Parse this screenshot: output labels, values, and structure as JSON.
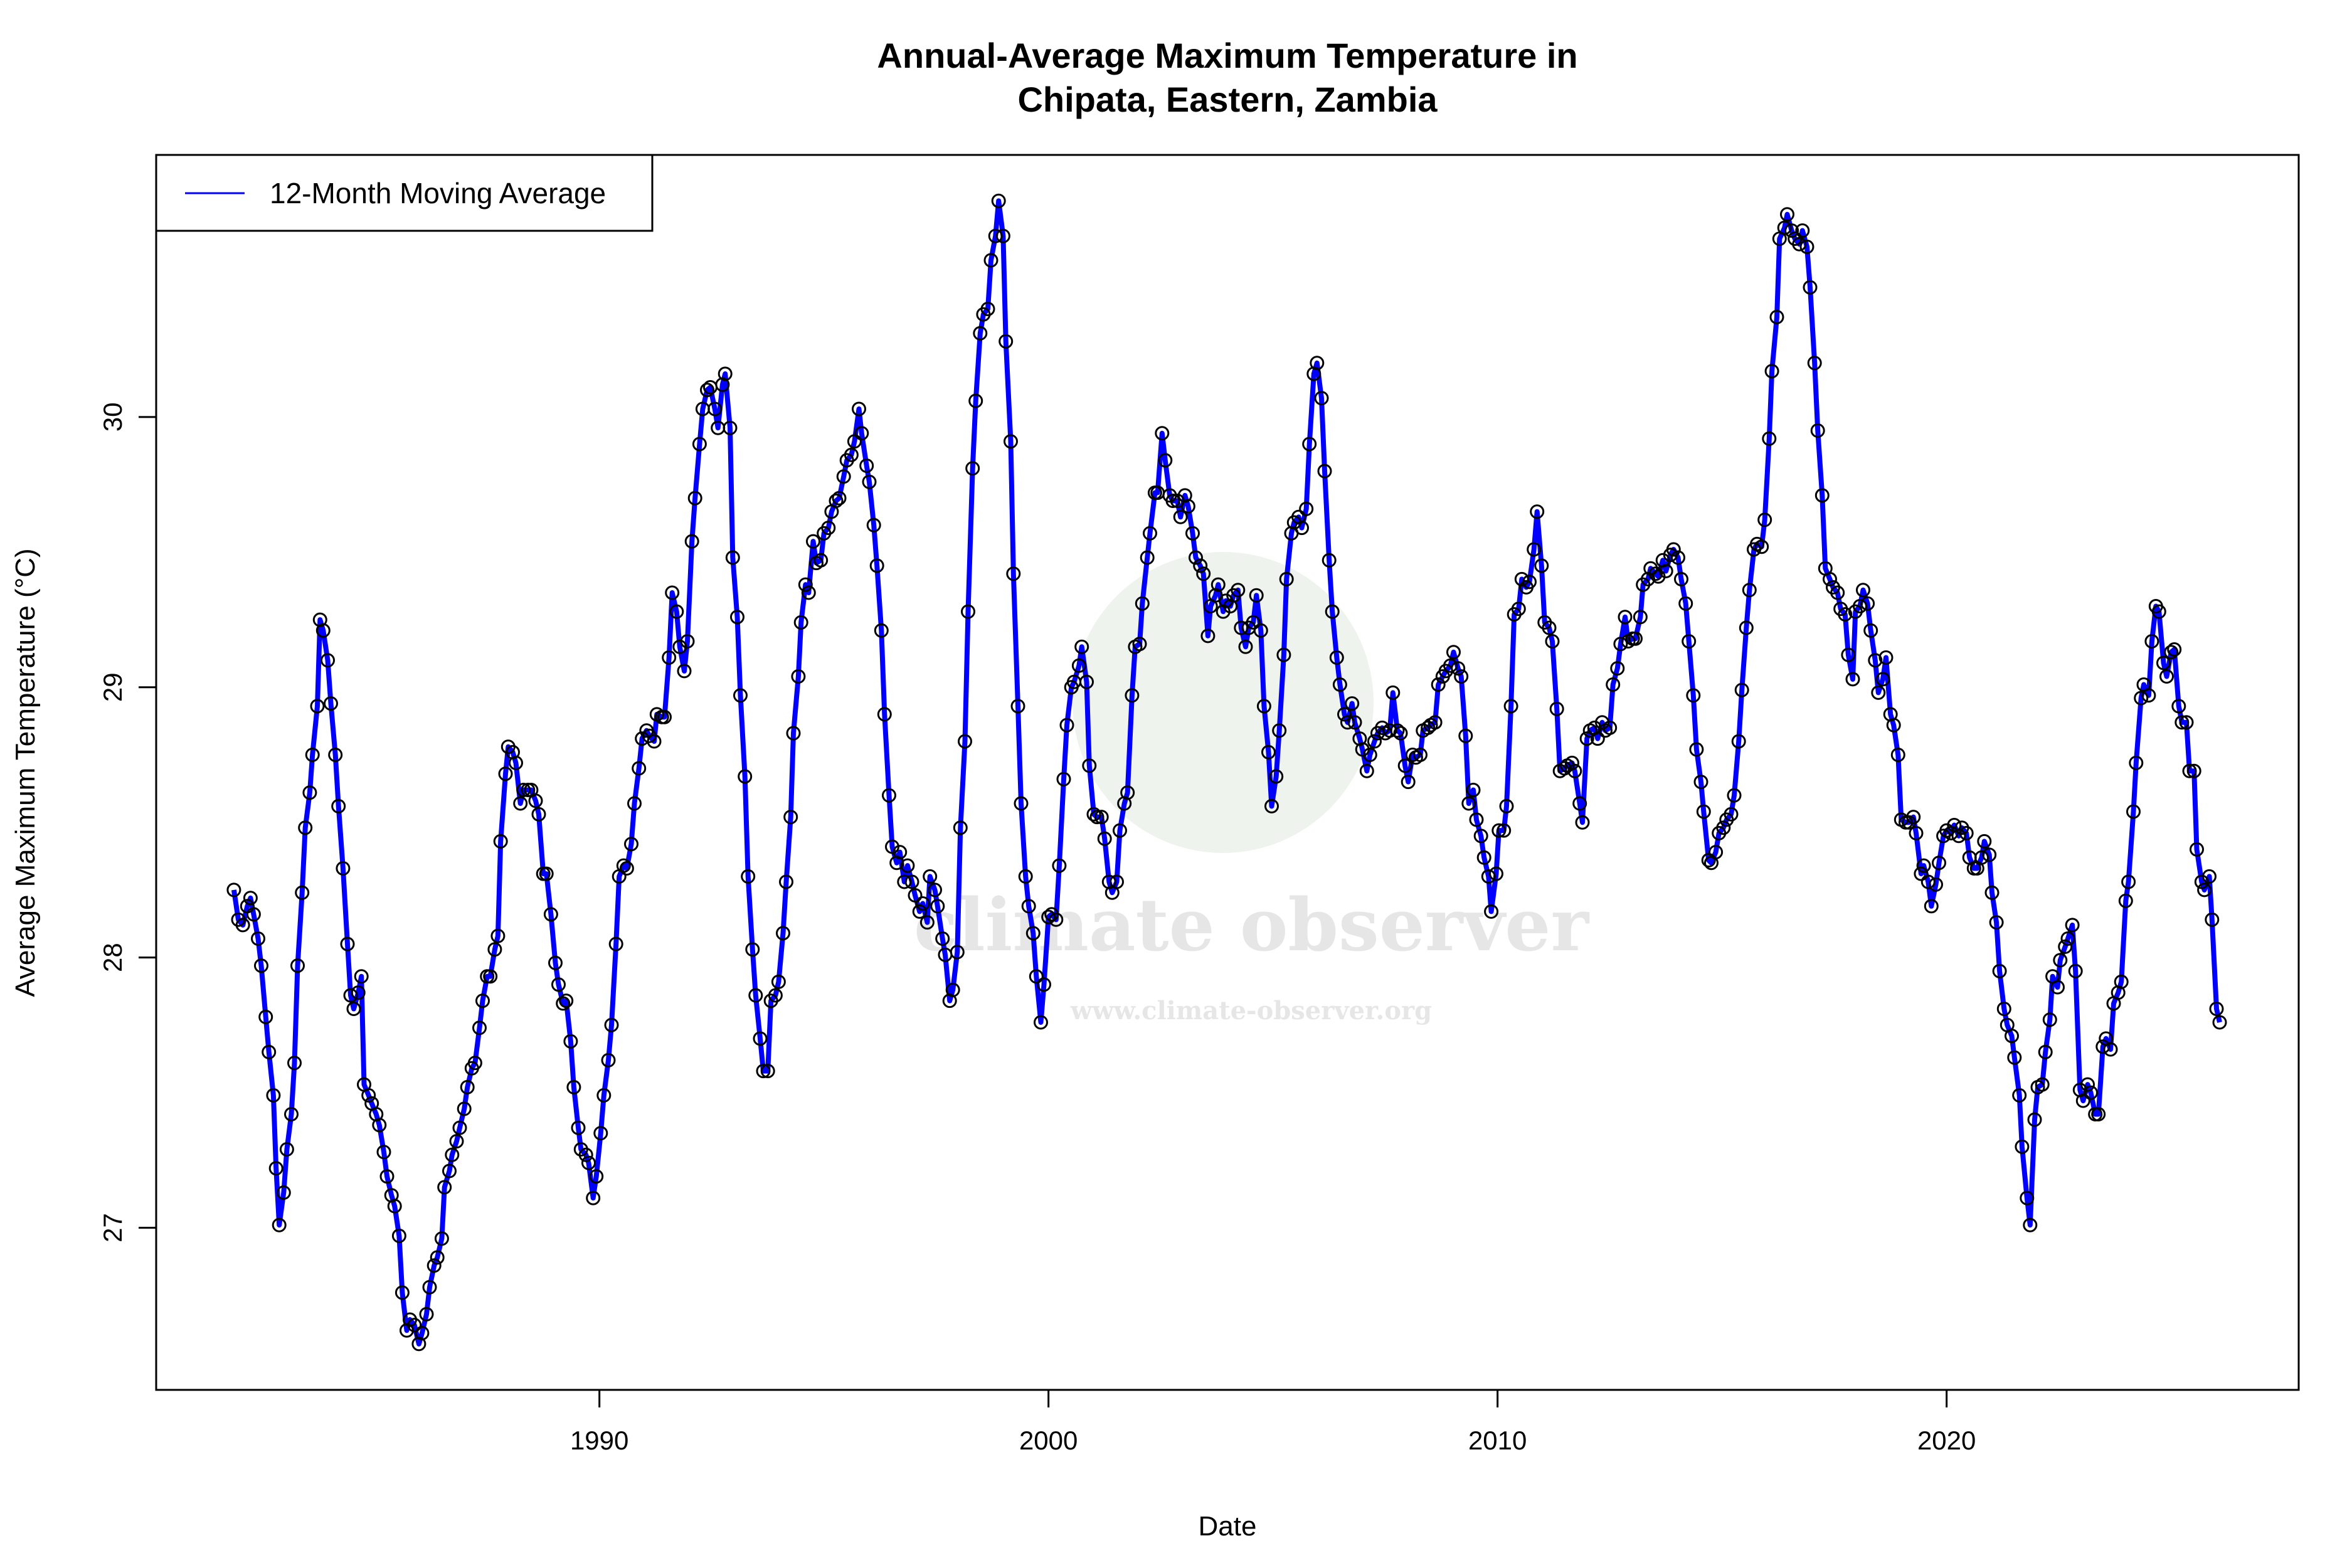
{
  "chart_data": {
    "type": "line",
    "title": [
      "Annual-Average Maximum Temperature in",
      "Chipata, Eastern, Zambia"
    ],
    "xlabel": "Date",
    "ylabel": "Average Maximum Temperature (°C)",
    "xlim": [
      1980.13,
      2027.84
    ],
    "ylim": [
      26.4,
      30.97
    ],
    "x_ticks": [
      1990,
      2000,
      2010,
      2020
    ],
    "y_ticks": [
      27,
      28,
      29,
      30
    ],
    "grid": false,
    "legend": {
      "position": "top-left",
      "entries": [
        {
          "label": "12-Month Moving Average",
          "color": "#0000ff"
        }
      ]
    },
    "series": [
      {
        "name": "12-Month Moving Average",
        "color": "#0000ff",
        "markers": "open-circle",
        "x": [
          1981.86,
          1981.96,
          1982.06,
          1982.16,
          1982.23,
          1982.3,
          1982.4,
          1982.47,
          1982.57,
          1982.64,
          1982.74,
          1982.8,
          1982.87,
          1982.97,
          1983.04,
          1983.14,
          1983.21,
          1983.28,
          1983.38,
          1983.45,
          1983.55,
          1983.61,
          1983.72,
          1983.78,
          1983.85,
          1983.95,
          1984.02,
          1984.12,
          1984.19,
          1984.29,
          1984.39,
          1984.46,
          1984.53,
          1984.63,
          1984.7,
          1984.76,
          1984.86,
          1984.93,
          1985.03,
          1985.1,
          1985.2,
          1985.27,
          1985.37,
          1985.44,
          1985.54,
          1985.61,
          1985.71,
          1985.78,
          1985.88,
          1985.98,
          1986.05,
          1986.15,
          1986.22,
          1986.32,
          1986.39,
          1986.49,
          1986.55,
          1986.66,
          1986.72,
          1986.82,
          1986.89,
          1986.99,
          1987.06,
          1987.16,
          1987.23,
          1987.33,
          1987.4,
          1987.5,
          1987.57,
          1987.67,
          1987.74,
          1987.8,
          1987.91,
          1987.97,
          1988.07,
          1988.14,
          1988.24,
          1988.31,
          1988.41,
          1988.48,
          1988.58,
          1988.65,
          1988.75,
          1988.82,
          1988.92,
          1989.02,
          1989.09,
          1989.19,
          1989.26,
          1989.36,
          1989.43,
          1989.53,
          1989.59,
          1989.7,
          1989.76,
          1989.86,
          1989.93,
          1990.03,
          1990.1,
          1990.2,
          1990.27,
          1990.37,
          1990.44,
          1990.54,
          1990.61,
          1990.71,
          1990.78,
          1990.88,
          1990.95,
          1991.05,
          1991.11,
          1991.22,
          1991.28,
          1991.39,
          1991.45,
          1991.55,
          1991.62,
          1991.72,
          1991.79,
          1991.89,
          1991.96,
          1992.06,
          1992.13,
          1992.23,
          1992.3,
          1992.4,
          1992.47,
          1992.57,
          1992.64,
          1992.74,
          1992.8,
          1992.91,
          1992.97,
          1993.07,
          1993.14,
          1993.24,
          1993.31,
          1993.41,
          1993.48,
          1993.58,
          1993.65,
          1993.75,
          1993.82,
          1993.92,
          1993.99,
          1994.09,
          1994.16,
          1994.26,
          1994.32,
          1994.43,
          1994.49,
          1994.59,
          1994.66,
          1994.76,
          1994.83,
          1994.93,
          1995.0,
          1995.1,
          1995.17,
          1995.27,
          1995.34,
          1995.44,
          1995.51,
          1995.61,
          1995.68,
          1995.78,
          1995.84,
          1995.95,
          1996.01,
          1996.11,
          1996.18,
          1996.28,
          1996.35,
          1996.45,
          1996.52,
          1996.62,
          1996.69,
          1996.79,
          1996.86,
          1996.96,
          1997.03,
          1997.13,
          1997.2,
          1997.3,
          1997.36,
          1997.47,
          1997.53,
          1997.64,
          1997.7,
          1997.8,
          1997.87,
          1997.97,
          1998.04,
          1998.14,
          1998.21,
          1998.31,
          1998.38,
          1998.48,
          1998.55,
          1998.65,
          1998.72,
          1998.82,
          1998.89,
          1998.99,
          1999.05,
          1999.16,
          1999.22,
          1999.32,
          1999.39,
          1999.49,
          1999.56,
          1999.66,
          1999.73,
          1999.83,
          1999.9,
          2000.0,
          2000.07,
          2000.17,
          2000.24,
          2000.34,
          2000.41,
          2000.51,
          2000.57,
          2000.68,
          2000.74,
          2000.85,
          2000.91,
          2001.01,
          2001.08,
          2001.18,
          2001.25,
          2001.35,
          2001.42,
          2001.52,
          2001.59,
          2001.69,
          2001.76,
          2001.86,
          2001.93,
          2002.03,
          2002.09,
          2002.2,
          2002.26,
          2002.37,
          2002.43,
          2002.53,
          2002.6,
          2002.7,
          2002.77,
          2002.87,
          2002.94,
          2003.04,
          2003.11,
          2003.21,
          2003.28,
          2003.38,
          2003.45,
          2003.55,
          2003.61,
          2003.72,
          2003.78,
          2003.89,
          2003.95,
          2004.05,
          2004.12,
          2004.22,
          2004.29,
          2004.39,
          2004.46,
          2004.56,
          2004.63,
          2004.73,
          2004.8,
          2004.9,
          2004.97,
          2005.07,
          2005.14,
          2005.24,
          2005.3,
          2005.41,
          2005.47,
          2005.57,
          2005.64,
          2005.74,
          2005.81,
          2005.91,
          2005.98,
          2006.08,
          2006.15,
          2006.25,
          2006.32,
          2006.42,
          2006.49,
          2006.59,
          2006.66,
          2006.76,
          2006.82,
          2006.93,
          2006.99,
          2007.09,
          2007.16,
          2007.26,
          2007.33,
          2007.43,
          2007.5,
          2007.6,
          2007.67,
          2007.77,
          2007.84,
          2007.94,
          2008.01,
          2008.11,
          2008.18,
          2008.28,
          2008.34,
          2008.45,
          2008.51,
          2008.61,
          2008.68,
          2008.78,
          2008.85,
          2008.95,
          2009.02,
          2009.12,
          2009.19,
          2009.29,
          2009.36,
          2009.46,
          2009.53,
          2009.63,
          2009.7,
          2009.8,
          2009.86,
          2009.97,
          2010.03,
          2010.14,
          2010.2,
          2010.3,
          2010.37,
          2010.47,
          2010.54,
          2010.64,
          2010.71,
          2010.81,
          2010.88,
          2010.98,
          2011.05,
          2011.15,
          2011.22,
          2011.32,
          2011.39,
          2011.49,
          2011.55,
          2011.66,
          2011.72,
          2011.83,
          2011.89,
          2011.99,
          2012.06,
          2012.16,
          2012.23,
          2012.33,
          2012.4,
          2012.5,
          2012.57,
          2012.67,
          2012.74,
          2012.84,
          2012.91,
          2013.01,
          2013.07,
          2013.18,
          2013.24,
          2013.35,
          2013.41,
          2013.52,
          2013.58,
          2013.68,
          2013.75,
          2013.85,
          2013.92,
          2014.02,
          2014.09,
          2014.19,
          2014.26,
          2014.36,
          2014.43,
          2014.53,
          2014.59,
          2014.7,
          2014.76,
          2014.86,
          2014.93,
          2015.03,
          2015.1,
          2015.2,
          2015.27,
          2015.37,
          2015.44,
          2015.54,
          2015.61,
          2015.71,
          2015.78,
          2015.88,
          2015.95,
          2016.05,
          2016.11,
          2016.22,
          2016.28,
          2016.39,
          2016.45,
          2016.55,
          2016.62,
          2016.72,
          2016.79,
          2016.89,
          2016.96,
          2017.06,
          2017.13,
          2017.23,
          2017.3,
          2017.4,
          2017.47,
          2017.57,
          2017.64,
          2017.74,
          2017.81,
          2017.91,
          2017.97,
          2018.07,
          2018.14,
          2018.24,
          2018.31,
          2018.41,
          2018.48,
          2018.58,
          2018.65,
          2018.75,
          2018.82,
          2018.92,
          2018.99,
          2019.09,
          2019.16,
          2019.26,
          2019.32,
          2019.43,
          2019.49,
          2019.59,
          2019.66,
          2019.76,
          2019.83,
          2019.93,
          2020.0,
          2020.1,
          2020.17,
          2020.27,
          2020.34,
          2020.44,
          2020.51,
          2020.61,
          2020.68,
          2020.78,
          2020.84,
          2020.95,
          2021.01,
          2021.11,
          2021.18,
          2021.28,
          2021.35,
          2021.45,
          2021.51,
          2021.62,
          2021.68,
          2021.79,
          2021.86,
          2021.96,
          2022.03,
          2022.13,
          2022.2,
          2022.3,
          2022.36,
          2022.47,
          2022.53,
          2022.64,
          2022.7,
          2022.8,
          2022.87,
          2022.97,
          2023.04,
          2023.14,
          2023.21,
          2023.31,
          2023.38,
          2023.48,
          2023.55,
          2023.65,
          2023.72,
          2023.82,
          2023.89,
          2023.99,
          2024.05,
          2024.16,
          2024.22,
          2024.33,
          2024.39,
          2024.5,
          2024.57,
          2024.66,
          2024.73,
          2024.83,
          2024.9,
          2025.0,
          2025.07,
          2025.17,
          2025.24,
          2025.34,
          2025.41,
          2025.51,
          2025.57,
          2025.68,
          2025.74,
          2025.85,
          2025.91,
          2026.01,
          2026.08
        ],
        "y": [
          28.25,
          28.14,
          28.12,
          28.19,
          28.22,
          28.16,
          28.07,
          27.97,
          27.78,
          27.65,
          27.49,
          27.22,
          27.01,
          27.13,
          27.29,
          27.42,
          27.61,
          27.97,
          28.24,
          28.48,
          28.61,
          28.75,
          28.93,
          29.25,
          29.21,
          29.1,
          28.94,
          28.75,
          28.56,
          28.33,
          28.05,
          27.86,
          27.81,
          27.87,
          27.93,
          27.53,
          27.49,
          27.46,
          27.42,
          27.38,
          27.28,
          27.19,
          27.12,
          27.08,
          26.97,
          26.76,
          26.62,
          26.66,
          26.64,
          26.57,
          26.61,
          26.68,
          26.78,
          26.86,
          26.89,
          26.96,
          27.15,
          27.21,
          27.27,
          27.32,
          27.37,
          27.44,
          27.52,
          27.59,
          27.61,
          27.74,
          27.84,
          27.93,
          27.93,
          28.03,
          28.08,
          28.43,
          28.68,
          28.78,
          28.76,
          28.72,
          28.57,
          28.62,
          28.62,
          28.62,
          28.58,
          28.53,
          28.31,
          28.31,
          28.16,
          27.98,
          27.9,
          27.83,
          27.84,
          27.69,
          27.52,
          27.37,
          27.29,
          27.27,
          27.24,
          27.11,
          27.19,
          27.35,
          27.49,
          27.62,
          27.75,
          28.05,
          28.3,
          28.34,
          28.33,
          28.42,
          28.57,
          28.7,
          28.81,
          28.84,
          28.82,
          28.8,
          28.9,
          28.89,
          28.89,
          29.11,
          29.35,
          29.28,
          29.15,
          29.06,
          29.17,
          29.54,
          29.7,
          29.9,
          30.03,
          30.1,
          30.11,
          30.03,
          29.96,
          30.12,
          30.16,
          29.96,
          29.48,
          29.26,
          28.97,
          28.67,
          28.3,
          28.03,
          27.86,
          27.7,
          27.58,
          27.58,
          27.84,
          27.86,
          27.91,
          28.09,
          28.28,
          28.52,
          28.83,
          29.04,
          29.24,
          29.38,
          29.35,
          29.54,
          29.46,
          29.47,
          29.57,
          29.59,
          29.65,
          29.69,
          29.7,
          29.78,
          29.84,
          29.86,
          29.91,
          30.03,
          29.94,
          29.82,
          29.76,
          29.6,
          29.45,
          29.21,
          28.9,
          28.6,
          28.41,
          28.35,
          28.39,
          28.28,
          28.34,
          28.28,
          28.23,
          28.17,
          28.2,
          28.13,
          28.3,
          28.25,
          28.19,
          28.07,
          28.01,
          27.84,
          27.88,
          28.02,
          28.48,
          28.8,
          29.28,
          29.81,
          30.06,
          30.31,
          30.38,
          30.4,
          30.58,
          30.67,
          30.8,
          30.67,
          30.28,
          29.91,
          29.42,
          28.93,
          28.57,
          28.3,
          28.19,
          28.09,
          27.93,
          27.76,
          27.9,
          28.15,
          28.16,
          28.14,
          28.34,
          28.66,
          28.86,
          29.0,
          29.02,
          29.08,
          29.15,
          29.02,
          28.71,
          28.53,
          28.52,
          28.52,
          28.44,
          28.28,
          28.24,
          28.28,
          28.47,
          28.57,
          28.61,
          28.97,
          29.15,
          29.16,
          29.31,
          29.48,
          29.57,
          29.72,
          29.72,
          29.94,
          29.84,
          29.71,
          29.69,
          29.69,
          29.63,
          29.71,
          29.67,
          29.57,
          29.48,
          29.45,
          29.42,
          29.19,
          29.3,
          29.34,
          29.38,
          29.28,
          29.32,
          29.3,
          29.34,
          29.36,
          29.22,
          29.15,
          29.22,
          29.24,
          29.34,
          29.21,
          28.93,
          28.76,
          28.56,
          28.67,
          28.84,
          29.12,
          29.4,
          29.57,
          29.61,
          29.63,
          29.59,
          29.66,
          29.9,
          30.16,
          30.2,
          30.07,
          29.8,
          29.47,
          29.28,
          29.11,
          29.01,
          28.9,
          28.87,
          28.94,
          28.87,
          28.81,
          28.77,
          28.69,
          28.75,
          28.8,
          28.83,
          28.85,
          28.83,
          28.84,
          28.98,
          28.84,
          28.83,
          28.71,
          28.65,
          28.75,
          28.74,
          28.75,
          28.84,
          28.85,
          28.86,
          28.87,
          29.01,
          29.04,
          29.06,
          29.08,
          29.13,
          29.07,
          29.04,
          28.82,
          28.57,
          28.62,
          28.51,
          28.45,
          28.37,
          28.3,
          28.17,
          28.31,
          28.47,
          28.47,
          28.56,
          28.93,
          29.27,
          29.29,
          29.4,
          29.37,
          29.39,
          29.51,
          29.65,
          29.45,
          29.24,
          29.22,
          29.17,
          28.92,
          28.69,
          28.7,
          28.71,
          28.72,
          28.69,
          28.57,
          28.5,
          28.81,
          28.84,
          28.85,
          28.81,
          28.87,
          28.84,
          28.85,
          29.01,
          29.07,
          29.16,
          29.26,
          29.17,
          29.18,
          29.18,
          29.26,
          29.38,
          29.4,
          29.44,
          29.42,
          29.41,
          29.47,
          29.43,
          29.49,
          29.51,
          29.48,
          29.4,
          29.31,
          29.17,
          28.97,
          28.77,
          28.65,
          28.54,
          28.36,
          28.35,
          28.39,
          28.46,
          28.48,
          28.51,
          28.53,
          28.6,
          28.8,
          28.99,
          29.22,
          29.36,
          29.51,
          29.53,
          29.52,
          29.62,
          29.92,
          30.17,
          30.37,
          30.66,
          30.7,
          30.75,
          30.69,
          30.66,
          30.64,
          30.69,
          30.63,
          30.48,
          30.2,
          29.95,
          29.71,
          29.44,
          29.4,
          29.37,
          29.35,
          29.29,
          29.27,
          29.12,
          29.03,
          29.28,
          29.3,
          29.36,
          29.31,
          29.21,
          29.1,
          28.98,
          29.03,
          29.11,
          28.9,
          28.86,
          28.75,
          28.51,
          28.5,
          28.5,
          28.52,
          28.46,
          28.31,
          28.34,
          28.28,
          28.19,
          28.27,
          28.35,
          28.45,
          28.47,
          28.46,
          28.49,
          28.45,
          28.48,
          28.46,
          28.37,
          28.33,
          28.33,
          28.37,
          28.43,
          28.38,
          28.24,
          28.13,
          27.95,
          27.81,
          27.75,
          27.71,
          27.63,
          27.49,
          27.3,
          27.11,
          27.01,
          27.4,
          27.52,
          27.53,
          27.65,
          27.77,
          27.93,
          27.89,
          27.99,
          28.04,
          28.07,
          28.12,
          27.95,
          27.51,
          27.47,
          27.53,
          27.5,
          27.42,
          27.42,
          27.67,
          27.7,
          27.66,
          27.83,
          27.87,
          27.91,
          28.21,
          28.28,
          28.54,
          28.72,
          28.96,
          29.01,
          28.97,
          29.17,
          29.3,
          29.28,
          29.09,
          29.04,
          29.13,
          29.14,
          28.93,
          28.87,
          28.87,
          28.69,
          28.69,
          28.4,
          28.28,
          28.25,
          28.3,
          28.14,
          27.81,
          27.76
        ]
      }
    ]
  },
  "watermark": {
    "name": "climate observer",
    "url": "www.climate-observer.org"
  }
}
